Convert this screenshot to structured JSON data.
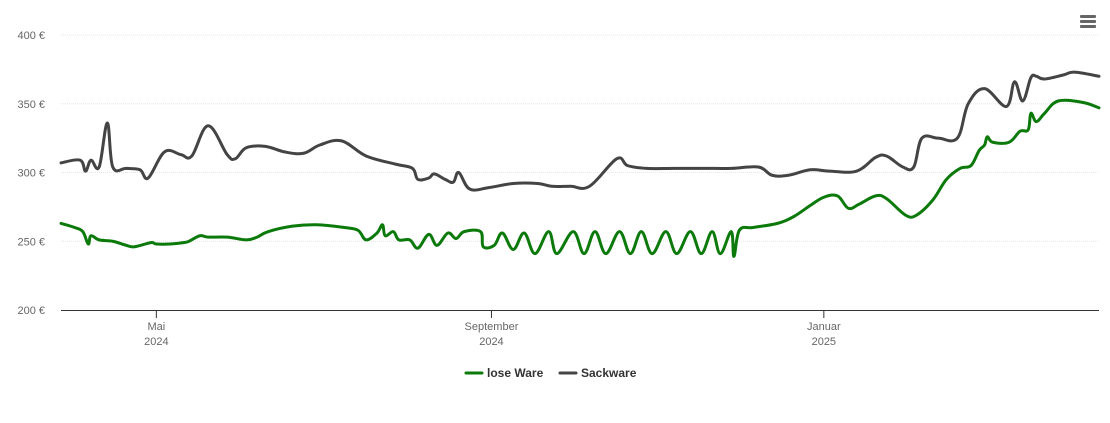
{
  "chart_data": {
    "type": "line",
    "y_ticks": [
      {
        "value": 200,
        "label": "200 €"
      },
      {
        "value": 250,
        "label": "250 €"
      },
      {
        "value": 300,
        "label": "300 €"
      },
      {
        "value": 350,
        "label": "350 €"
      },
      {
        "value": 400,
        "label": "400 €"
      }
    ],
    "ylim": [
      200,
      400
    ],
    "xlim": [
      "2024-03-27",
      "2025-04-12"
    ],
    "x_ticks": [
      {
        "date": "2024-05-01",
        "month": "Mai",
        "year": "2024"
      },
      {
        "date": "2024-09-01",
        "month": "September",
        "year": "2024"
      },
      {
        "date": "2025-01-01",
        "month": "Januar",
        "year": "2025"
      }
    ],
    "grid": true,
    "legend_position": "bottom-center",
    "series": [
      {
        "name": "lose Ware",
        "color": "#0b7a0b",
        "points": [
          [
            "2024-03-27",
            263
          ],
          [
            "2024-04-01",
            260
          ],
          [
            "2024-04-04",
            257
          ],
          [
            "2024-04-06",
            248
          ],
          [
            "2024-04-07",
            254
          ],
          [
            "2024-04-10",
            251
          ],
          [
            "2024-04-15",
            250
          ],
          [
            "2024-04-20",
            247
          ],
          [
            "2024-04-23",
            246
          ],
          [
            "2024-04-29",
            249
          ],
          [
            "2024-05-01",
            248
          ],
          [
            "2024-05-06",
            248
          ],
          [
            "2024-05-11",
            249
          ],
          [
            "2024-05-13",
            250
          ],
          [
            "2024-05-17",
            254
          ],
          [
            "2024-05-20",
            253
          ],
          [
            "2024-05-27",
            253
          ],
          [
            "2024-06-03",
            251
          ],
          [
            "2024-06-07",
            253
          ],
          [
            "2024-06-11",
            257
          ],
          [
            "2024-06-20",
            261
          ],
          [
            "2024-06-29",
            262
          ],
          [
            "2024-07-09",
            260
          ],
          [
            "2024-07-14",
            258
          ],
          [
            "2024-07-17",
            251
          ],
          [
            "2024-07-21",
            256
          ],
          [
            "2024-07-23",
            262
          ],
          [
            "2024-07-24",
            254
          ],
          [
            "2024-07-27",
            257
          ],
          [
            "2024-07-29",
            251
          ],
          [
            "2024-08-02",
            251
          ],
          [
            "2024-08-05",
            245
          ],
          [
            "2024-08-09",
            255
          ],
          [
            "2024-08-12",
            247
          ],
          [
            "2024-08-16",
            256
          ],
          [
            "2024-08-19",
            252
          ],
          [
            "2024-08-22",
            257
          ],
          [
            "2024-08-28",
            257
          ],
          [
            "2024-08-29",
            246
          ],
          [
            "2024-09-02",
            247
          ],
          [
            "2024-09-05",
            256
          ],
          [
            "2024-09-09",
            244
          ],
          [
            "2024-09-13",
            256
          ],
          [
            "2024-09-17",
            241
          ],
          [
            "2024-09-22",
            257
          ],
          [
            "2024-09-25",
            241
          ],
          [
            "2024-10-01",
            257
          ],
          [
            "2024-10-05",
            241
          ],
          [
            "2024-10-09",
            257
          ],
          [
            "2024-10-13",
            241
          ],
          [
            "2024-10-18",
            257
          ],
          [
            "2024-10-22",
            241
          ],
          [
            "2024-10-26",
            257
          ],
          [
            "2024-10-30",
            241
          ],
          [
            "2024-11-04",
            257
          ],
          [
            "2024-11-08",
            241
          ],
          [
            "2024-11-13",
            257
          ],
          [
            "2024-11-17",
            241
          ],
          [
            "2024-11-21",
            257
          ],
          [
            "2024-11-24",
            241
          ],
          [
            "2024-11-28",
            257
          ],
          [
            "2024-11-29",
            239
          ],
          [
            "2024-12-01",
            258
          ],
          [
            "2024-12-06",
            260
          ],
          [
            "2024-12-15",
            263
          ],
          [
            "2024-12-21",
            268
          ],
          [
            "2024-12-27",
            276
          ],
          [
            "2025-01-01",
            282
          ],
          [
            "2025-01-06",
            283
          ],
          [
            "2025-01-10",
            274
          ],
          [
            "2025-01-14",
            277
          ],
          [
            "2025-01-20",
            283
          ],
          [
            "2025-01-24",
            281
          ],
          [
            "2025-01-31",
            269
          ],
          [
            "2025-02-04",
            269
          ],
          [
            "2025-02-10",
            280
          ],
          [
            "2025-02-15",
            295
          ],
          [
            "2025-02-20",
            303
          ],
          [
            "2025-02-24",
            305
          ],
          [
            "2025-02-27",
            316
          ],
          [
            "2025-03-01",
            320
          ],
          [
            "2025-03-02",
            326
          ],
          [
            "2025-03-04",
            322
          ],
          [
            "2025-03-10",
            322
          ],
          [
            "2025-03-14",
            330
          ],
          [
            "2025-03-17",
            331
          ],
          [
            "2025-03-18",
            343
          ],
          [
            "2025-03-20",
            337
          ],
          [
            "2025-03-23",
            343
          ],
          [
            "2025-03-28",
            352
          ],
          [
            "2025-04-06",
            351
          ],
          [
            "2025-04-12",
            347
          ]
        ]
      },
      {
        "name": "Sackware",
        "color": "#444444",
        "points": [
          [
            "2024-03-27",
            307
          ],
          [
            "2024-04-03",
            309
          ],
          [
            "2024-04-05",
            301
          ],
          [
            "2024-04-07",
            309
          ],
          [
            "2024-04-10",
            304
          ],
          [
            "2024-04-13",
            336
          ],
          [
            "2024-04-15",
            304
          ],
          [
            "2024-04-20",
            303
          ],
          [
            "2024-04-25",
            302
          ],
          [
            "2024-04-28",
            296
          ],
          [
            "2024-05-04",
            315
          ],
          [
            "2024-05-10",
            313
          ],
          [
            "2024-05-14",
            312
          ],
          [
            "2024-05-20",
            334
          ],
          [
            "2024-05-27",
            313
          ],
          [
            "2024-05-30",
            310
          ],
          [
            "2024-06-03",
            318
          ],
          [
            "2024-06-10",
            319
          ],
          [
            "2024-06-17",
            315
          ],
          [
            "2024-06-24",
            314
          ],
          [
            "2024-06-30",
            320
          ],
          [
            "2024-07-08",
            323
          ],
          [
            "2024-07-17",
            312
          ],
          [
            "2024-07-28",
            306
          ],
          [
            "2024-08-03",
            303
          ],
          [
            "2024-08-05",
            295
          ],
          [
            "2024-08-09",
            296
          ],
          [
            "2024-08-11",
            299
          ],
          [
            "2024-08-15",
            295
          ],
          [
            "2024-08-18",
            293
          ],
          [
            "2024-08-20",
            300
          ],
          [
            "2024-08-24",
            288
          ],
          [
            "2024-08-31",
            289
          ],
          [
            "2024-09-09",
            292
          ],
          [
            "2024-09-18",
            292
          ],
          [
            "2024-09-23",
            290
          ],
          [
            "2024-09-30",
            290
          ],
          [
            "2024-10-07",
            290
          ],
          [
            "2024-10-17",
            310
          ],
          [
            "2024-10-21",
            305
          ],
          [
            "2024-10-28",
            303
          ],
          [
            "2024-11-07",
            303
          ],
          [
            "2024-11-18",
            303
          ],
          [
            "2024-11-28",
            303
          ],
          [
            "2024-12-08",
            304
          ],
          [
            "2024-12-13",
            298
          ],
          [
            "2024-12-19",
            298
          ],
          [
            "2024-12-27",
            302
          ],
          [
            "2025-01-03",
            301
          ],
          [
            "2025-01-13",
            301
          ],
          [
            "2025-01-20",
            311
          ],
          [
            "2025-01-24",
            312
          ],
          [
            "2025-01-30",
            304
          ],
          [
            "2025-02-03",
            304
          ],
          [
            "2025-02-06",
            325
          ],
          [
            "2025-02-12",
            325
          ],
          [
            "2025-02-19",
            325
          ],
          [
            "2025-02-23",
            350
          ],
          [
            "2025-03-01",
            361
          ],
          [
            "2025-03-09",
            348
          ],
          [
            "2025-03-12",
            366
          ],
          [
            "2025-03-15",
            352
          ],
          [
            "2025-03-18",
            369
          ],
          [
            "2025-03-20",
            370
          ],
          [
            "2025-03-23",
            368
          ],
          [
            "2025-03-30",
            371
          ],
          [
            "2025-04-03",
            373
          ],
          [
            "2025-04-12",
            370
          ]
        ]
      }
    ]
  },
  "toolbar": {
    "menu_icon": "hamburger-menu-icon"
  },
  "legend": {
    "items": [
      {
        "label": "lose Ware",
        "color": "#0b7a0b"
      },
      {
        "label": "Sackware",
        "color": "#444444"
      }
    ]
  }
}
